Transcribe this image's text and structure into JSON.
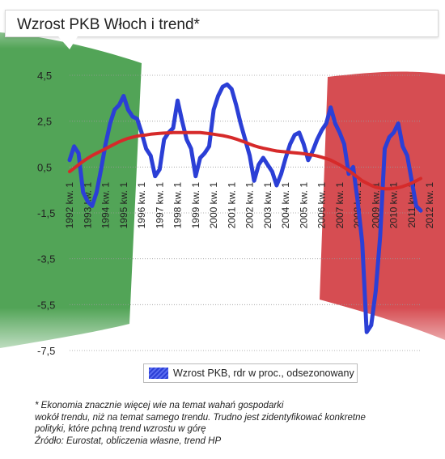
{
  "title": "Wzrost PKB Włoch i trend*",
  "legend": {
    "label": "Wzrost PKB, rdr w proc., odsezonowany"
  },
  "footnote": {
    "line1": "* Ekonomia znacznie więcej wie na temat wahań gospodarki",
    "line2": "wokół trendu, niż na temat samego trendu. Trudno jest zidentyfikować konkretne",
    "line3": "polityki, które pchną trend wzrostu w górę",
    "line4": "Źródło: Eurostat, obliczenia własne, trend HP"
  },
  "colors": {
    "gdp_line": "#2b3fd6",
    "trend_line": "#d62a2a",
    "flag_green": "#3f9a45",
    "flag_white": "#ffffff",
    "flag_red": "#d23a3f"
  },
  "chart_data": {
    "type": "line",
    "ylim": [
      -7.5,
      4.5
    ],
    "yticks": [
      4.5,
      2.5,
      0.5,
      -1.5,
      -3.5,
      -5.5,
      -7.5
    ],
    "ytick_labels": [
      "4,5",
      "2,5",
      "0,5",
      "-1,5",
      "-3,5",
      "-5,5",
      "-7,5"
    ],
    "grid": true,
    "legend_position": "bottom",
    "x_start": "1992 kw. 1",
    "x_end": "2012 kw. 4",
    "xtick_labels": [
      "1992 kw. 1",
      "1993 kw. 1",
      "1994 kw. 1",
      "1995 kw. 1",
      "1996 kw. 1",
      "1997 kw. 1",
      "1998 kw. 1",
      "1999 kw. 1",
      "2000 kw. 1",
      "2001 kw. 1",
      "2002 kw. 1",
      "2003 kw. 1",
      "2004 kw. 1",
      "2005 kw. 1",
      "2006 kw. 1",
      "2007 kw. 1",
      "2008 kw. 1",
      "2009 kw. 1",
      "2010 kw. 1",
      "2011 kw. 1",
      "2012 kw. 1"
    ],
    "series": [
      {
        "name": "Wzrost PKB, rdr w proc., odsezonowany",
        "values": [
          0.8,
          1.4,
          1.1,
          -0.6,
          -1.0,
          -1.2,
          -0.6,
          0.4,
          1.5,
          2.4,
          3.0,
          3.2,
          3.6,
          3.0,
          2.7,
          2.6,
          2.0,
          1.3,
          1.0,
          0.1,
          0.4,
          1.7,
          2.0,
          2.2,
          3.4,
          2.5,
          1.7,
          1.3,
          0.1,
          0.9,
          1.1,
          1.4,
          3.0,
          3.6,
          4.0,
          4.1,
          3.9,
          3.2,
          2.4,
          1.7,
          1.0,
          -0.1,
          0.6,
          0.9,
          0.6,
          0.3,
          -0.3,
          0.2,
          0.9,
          1.5,
          1.9,
          2.0,
          1.5,
          0.8,
          1.2,
          1.7,
          2.1,
          2.4,
          3.1,
          2.4,
          2.0,
          1.5,
          0.2,
          0.5,
          -1.0,
          -2.8,
          -6.7,
          -6.4,
          -4.9,
          -2.5,
          1.3,
          1.8,
          2.0,
          2.4,
          1.4,
          1.0,
          -0.1,
          -1.2,
          -1.4
        ],
        "color": "#2b3fd6"
      },
      {
        "name": "",
        "values": [
          0.3,
          0.45,
          0.6,
          0.75,
          0.88,
          1.0,
          1.1,
          1.2,
          1.3,
          1.4,
          1.5,
          1.6,
          1.68,
          1.75,
          1.8,
          1.85,
          1.88,
          1.9,
          1.93,
          1.95,
          1.97,
          1.98,
          1.99,
          2.0,
          2.0,
          2.0,
          2.0,
          2.0,
          2.0,
          2.0,
          1.98,
          1.96,
          1.93,
          1.9,
          1.87,
          1.83,
          1.78,
          1.72,
          1.65,
          1.58,
          1.5,
          1.43,
          1.37,
          1.32,
          1.28,
          1.24,
          1.2,
          1.18,
          1.16,
          1.14,
          1.12,
          1.1,
          1.08,
          1.05,
          1.02,
          0.98,
          0.93,
          0.87,
          0.8,
          0.7,
          0.6,
          0.48,
          0.35,
          0.2,
          0.05,
          -0.1,
          -0.2,
          -0.3,
          -0.38,
          -0.42,
          -0.45,
          -0.45,
          -0.43,
          -0.4,
          -0.35,
          -0.28,
          -0.2,
          -0.1,
          0.0
        ],
        "color": "#d62a2a"
      }
    ]
  }
}
